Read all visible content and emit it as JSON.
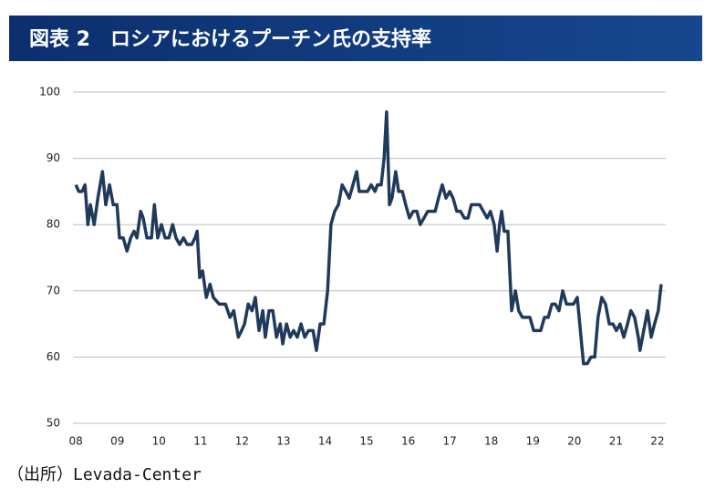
{
  "chart_data": {
    "type": "line",
    "title": "図表 2　ロシアにおけるプーチン氏の支持率",
    "source": "（出所）Levada-Center",
    "x": [
      2008.0,
      2008.07,
      2008.15,
      2008.22,
      2008.29,
      2008.35,
      2008.44,
      2008.53,
      2008.64,
      2008.72,
      2008.81,
      2008.9,
      2008.99,
      2009.05,
      2009.14,
      2009.23,
      2009.32,
      2009.4,
      2009.47,
      2009.56,
      2009.62,
      2009.71,
      2009.82,
      2009.89,
      2009.97,
      2010.06,
      2010.15,
      2010.24,
      2010.33,
      2010.41,
      2010.5,
      2010.59,
      2010.68,
      2010.79,
      2010.87,
      2010.92,
      2010.98,
      2011.05,
      2011.14,
      2011.23,
      2011.31,
      2011.45,
      2011.6,
      2011.71,
      2011.8,
      2011.91,
      2011.99,
      2012.06,
      2012.15,
      2012.24,
      2012.32,
      2012.41,
      2012.5,
      2012.56,
      2012.65,
      2012.74,
      2012.83,
      2012.92,
      2012.98,
      2013.07,
      2013.16,
      2013.24,
      2013.33,
      2013.42,
      2013.51,
      2013.6,
      2013.71,
      2013.79,
      2013.88,
      2013.97,
      2014.06,
      2014.14,
      2014.23,
      2014.32,
      2014.41,
      2014.5,
      2014.58,
      2014.67,
      2014.76,
      2014.82,
      2014.91,
      2015.02,
      2015.11,
      2015.2,
      2015.26,
      2015.35,
      2015.42,
      2015.48,
      2015.55,
      2015.61,
      2015.7,
      2015.77,
      2015.86,
      2015.94,
      2016.03,
      2016.12,
      2016.21,
      2016.29,
      2016.38,
      2016.47,
      2016.56,
      2016.65,
      2016.73,
      2016.82,
      2016.91,
      2017.0,
      2017.08,
      2017.17,
      2017.26,
      2017.35,
      2017.44,
      2017.52,
      2017.63,
      2017.72,
      2017.81,
      2017.9,
      2017.98,
      2018.07,
      2018.14,
      2018.2,
      2018.25,
      2018.31,
      2018.4,
      2018.49,
      2018.58,
      2018.66,
      2018.75,
      2018.84,
      2018.93,
      2019.02,
      2019.1,
      2019.19,
      2019.28,
      2019.37,
      2019.46,
      2019.54,
      2019.63,
      2019.72,
      2019.81,
      2019.89,
      2019.98,
      2020.07,
      2020.16,
      2020.22,
      2020.31,
      2020.4,
      2020.49,
      2020.57,
      2020.66,
      2020.75,
      2020.84,
      2020.93,
      2021.01,
      2021.1,
      2021.19,
      2021.28,
      2021.36,
      2021.45,
      2021.54,
      2021.58,
      2021.67,
      2021.76,
      2021.85,
      2021.93,
      2022.02,
      2022.09
    ],
    "series": [
      {
        "color": "#203a5c",
        "values": [
          86,
          85,
          85,
          86,
          80,
          83,
          80,
          84,
          88,
          83,
          86,
          83,
          83,
          78,
          78,
          76,
          78,
          79,
          78,
          82,
          81,
          78,
          78,
          83,
          78,
          80,
          78,
          78,
          80,
          78,
          77,
          78,
          77,
          77,
          78,
          79,
          72,
          73,
          69,
          71,
          69,
          68,
          68,
          66,
          67,
          63,
          64,
          65,
          68,
          67,
          69,
          64,
          67,
          63,
          67,
          67,
          63,
          65,
          62,
          65,
          63,
          64,
          63,
          65,
          63,
          64,
          64,
          61,
          65,
          65,
          70,
          80,
          82,
          83,
          86,
          85,
          84,
          86,
          88,
          85,
          85,
          85,
          86,
          85,
          86,
          86,
          90,
          97,
          83,
          84,
          88,
          85,
          85,
          83,
          81,
          82,
          82,
          80,
          81,
          82,
          82,
          82,
          84,
          86,
          84,
          85,
          84,
          82,
          82,
          81,
          81,
          83,
          83,
          83,
          82,
          81,
          82,
          80,
          76,
          80,
          82,
          79,
          79,
          67,
          70,
          67,
          66,
          66,
          66,
          64,
          64,
          64,
          66,
          66,
          68,
          68,
          67,
          70,
          68,
          68,
          68,
          69,
          63,
          59,
          59,
          60,
          60,
          66,
          69,
          68,
          65,
          65,
          64,
          65,
          63,
          65,
          67,
          66,
          63,
          61,
          64,
          67,
          63,
          65,
          67,
          71
        ]
      }
    ],
    "xlim": [
      2007.93,
      2022.2
    ],
    "xticks": [
      {
        "value": 2008,
        "label": "08"
      },
      {
        "value": 2009,
        "label": "09"
      },
      {
        "value": 2010,
        "label": "10"
      },
      {
        "value": 2011,
        "label": "11"
      },
      {
        "value": 2012,
        "label": "12"
      },
      {
        "value": 2013,
        "label": "13"
      },
      {
        "value": 2014,
        "label": "14"
      },
      {
        "value": 2015,
        "label": "15"
      },
      {
        "value": 2016,
        "label": "16"
      },
      {
        "value": 2017,
        "label": "17"
      },
      {
        "value": 2018,
        "label": "18"
      },
      {
        "value": 2019,
        "label": "19"
      },
      {
        "value": 2020,
        "label": "20"
      },
      {
        "value": 2021,
        "label": "21"
      },
      {
        "value": 2022,
        "label": "22"
      }
    ],
    "ylim": [
      50,
      100
    ],
    "yticks": [
      50,
      60,
      70,
      80,
      90,
      100
    ],
    "grid": true
  }
}
